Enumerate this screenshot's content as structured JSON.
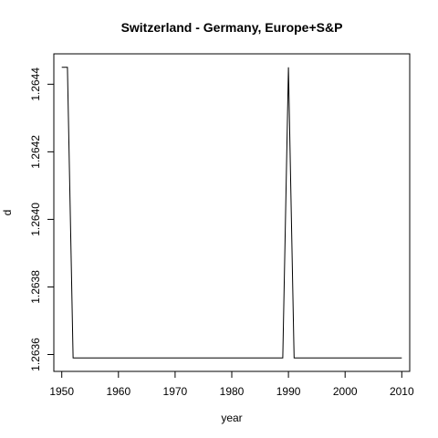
{
  "chart_data": {
    "type": "line",
    "title": "Switzerland - Germany, Europe+S&P",
    "xlabel": "year",
    "ylabel": "d",
    "xlim": [
      1948.6,
      2011.4
    ],
    "ylim": [
      1.26355,
      1.26449
    ],
    "x_ticks": [
      1950,
      1960,
      1970,
      1980,
      1990,
      2000,
      2010
    ],
    "y_ticks": [
      1.2636,
      1.2638,
      1.264,
      1.2642,
      1.2644
    ],
    "x_tick_labels": [
      "1950",
      "1960",
      "1970",
      "1980",
      "1990",
      "2000",
      "2010"
    ],
    "y_tick_labels": [
      "1.2636",
      "1.2638",
      "1.2640",
      "1.2642",
      "1.2644"
    ],
    "series": [
      {
        "x": [
          1950,
          1951,
          1952,
          1953,
          1954,
          1955,
          1956,
          1957,
          1958,
          1959,
          1960,
          1961,
          1962,
          1963,
          1964,
          1965,
          1966,
          1967,
          1968,
          1969,
          1970,
          1971,
          1972,
          1973,
          1974,
          1975,
          1976,
          1977,
          1978,
          1979,
          1980,
          1981,
          1982,
          1983,
          1984,
          1985,
          1986,
          1987,
          1988,
          1989,
          1990,
          1991,
          1992,
          1993,
          1994,
          1995,
          1996,
          1997,
          1998,
          1999,
          2000,
          2001,
          2002,
          2003,
          2004,
          2005,
          2006,
          2007,
          2008,
          2009,
          2010
        ],
        "y": [
          1.26445,
          1.26445,
          1.26359,
          1.26359,
          1.26359,
          1.26359,
          1.26359,
          1.26359,
          1.26359,
          1.26359,
          1.26359,
          1.26359,
          1.26359,
          1.26359,
          1.26359,
          1.26359,
          1.26359,
          1.26359,
          1.26359,
          1.26359,
          1.26359,
          1.26359,
          1.26359,
          1.26359,
          1.26359,
          1.26359,
          1.26359,
          1.26359,
          1.26359,
          1.26359,
          1.26359,
          1.26359,
          1.26359,
          1.26359,
          1.26359,
          1.26359,
          1.26359,
          1.26359,
          1.26359,
          1.26359,
          1.26445,
          1.26359,
          1.26359,
          1.26359,
          1.26359,
          1.26359,
          1.26359,
          1.26359,
          1.26359,
          1.26359,
          1.26359,
          1.26359,
          1.26359,
          1.26359,
          1.26359,
          1.26359,
          1.26359,
          1.26359,
          1.26359,
          1.26359,
          1.26359
        ],
        "color": "#000000"
      }
    ],
    "grid": false,
    "legend": "none"
  }
}
